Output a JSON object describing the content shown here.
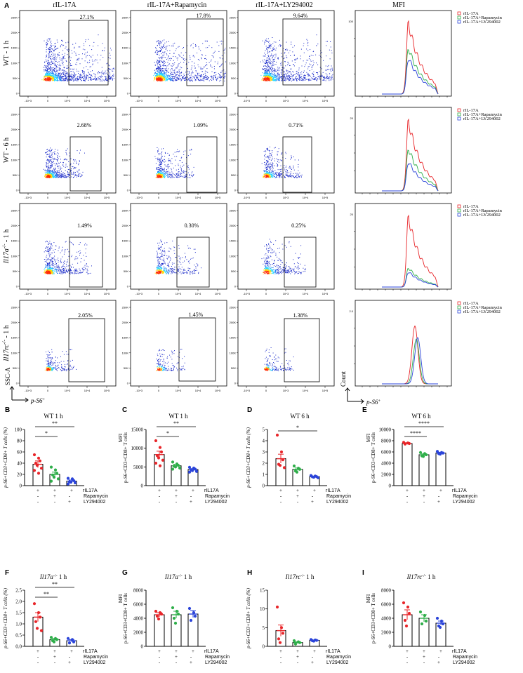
{
  "figure": {
    "section_a_label": "A",
    "column_headers": [
      "rIL-17A",
      "rIL-17A+Rapamycin",
      "rIL-17A+LY294002",
      "MFI"
    ],
    "row_labels": [
      "WT - 1 h",
      "WT - 6 h",
      "Il17a-/- - 1 h",
      "Il17rc-/- - 1 h"
    ],
    "legend_entries": [
      "rIL-17A",
      "rIL-17A+Rapamycin",
      "rIL-17A+LY294002"
    ],
    "colors": {
      "rIL17A": "#e8262a",
      "rapamycin": "#2fae4a",
      "ly294002": "#2b44d9",
      "flow_core": "#ff2a00",
      "flow_mid": "#19d8ff",
      "flow_outer": "#1626c8"
    },
    "flow_axis": {
      "y_label": "SSC-A",
      "x_label": "p-S6+",
      "y_ticks": [
        "250K",
        "200K",
        "150K",
        "100K",
        "50K",
        "0"
      ],
      "x_ticks": [
        "-10^3",
        "0",
        "10^3",
        "10^4",
        "10^5"
      ]
    },
    "hist_axis": {
      "y_label": "Count",
      "x_label": "p-S6+"
    },
    "gates": [
      [
        "27.1%",
        "17.8%",
        "9.64%"
      ],
      [
        "2.68%",
        "1.09%",
        "0.71%"
      ],
      [
        "1.49%",
        "0.30%",
        "0.25%"
      ],
      [
        "2.05%",
        "1.45%",
        "1.38%"
      ]
    ],
    "hist_ymax": [
      "100",
      "20",
      "20",
      "2.0"
    ],
    "treatment_rows": [
      "rIL17A",
      "Rapamycin",
      "LY294002"
    ],
    "treatment_signs": [
      [
        "+",
        "+",
        "+"
      ],
      [
        "-",
        "+",
        "-"
      ],
      [
        "-",
        "-",
        "+"
      ]
    ]
  },
  "chart_data": [
    {
      "panel": "B",
      "type": "bar",
      "title": "WT 1 h",
      "ylabel": "p-S6+CD3+CD8+ T cells (%)",
      "ylim": [
        0,
        100
      ],
      "yticks": [
        "0",
        "20",
        "40",
        "60",
        "80",
        "100"
      ],
      "categories": [
        "rIL17A",
        "rIL17A+Rapamycin",
        "rIL17A+LY294002"
      ],
      "values": [
        38,
        20,
        8
      ],
      "errors": [
        6,
        4,
        2
      ],
      "points": [
        [
          55,
          49,
          44,
          40,
          36,
          31,
          27,
          22
        ],
        [
          33,
          28,
          22,
          19,
          15,
          12,
          8
        ],
        [
          13,
          12,
          9,
          7,
          6,
          5,
          3
        ]
      ],
      "sig": [
        {
          "text": "**",
          "from": 0,
          "to": 2
        },
        {
          "text": "*",
          "from": 0,
          "to": 1
        }
      ]
    },
    {
      "panel": "C",
      "type": "bar",
      "title": "WT 1 h",
      "ylabel": "MFI",
      "ylabel2": "p-S6+CD3+CD8+ T cells",
      "ylim": [
        0,
        15000
      ],
      "yticks": [
        "0",
        "5000",
        "10000",
        "15000"
      ],
      "categories": [
        "rIL17A",
        "rIL17A+Rapamycin",
        "rIL17A+LY294002"
      ],
      "values": [
        8300,
        5300,
        4300
      ],
      "errors": [
        900,
        400,
        250
      ],
      "points": [
        [
          12000,
          10200,
          9000,
          8000,
          7400,
          6800,
          6000,
          5300
        ],
        [
          6300,
          5800,
          5400,
          5200,
          5000,
          4700,
          4400
        ],
        [
          4900,
          4700,
          4400,
          4200,
          4000,
          3800,
          3600
        ]
      ],
      "sig": [
        {
          "text": "**",
          "from": 0,
          "to": 2
        },
        {
          "text": "*",
          "from": 0,
          "to": 1
        }
      ]
    },
    {
      "panel": "D",
      "type": "bar",
      "title": "WT 6 h",
      "ylabel": "p-S6+CD3+CD8+ T cells (%)",
      "ylim": [
        0,
        5
      ],
      "yticks": [
        "0",
        "1",
        "2",
        "3",
        "4",
        "5"
      ],
      "categories": [
        "rIL17A",
        "rIL17A+Rapamycin",
        "rIL17A+LY294002"
      ],
      "values": [
        2.4,
        1.45,
        0.8
      ],
      "errors": [
        0.4,
        0.12,
        0.05
      ],
      "points": [
        [
          4.5,
          3.0,
          2.3,
          1.9,
          1.8,
          1.6
        ],
        [
          1.75,
          1.55,
          1.45,
          1.3,
          1.2
        ],
        [
          0.9,
          0.85,
          0.8,
          0.78,
          0.75,
          0.7
        ]
      ],
      "sig": [
        {
          "text": "*",
          "from": 0,
          "to": 2
        }
      ]
    },
    {
      "panel": "E",
      "type": "bar",
      "title": "WT 6 h",
      "ylabel": "MFI",
      "ylabel2": "p-S6+CD3+CD8+ T cells",
      "ylim": [
        0,
        10000
      ],
      "yticks": [
        "0",
        "2000",
        "4000",
        "6000",
        "8000",
        "10000"
      ],
      "categories": [
        "rIL17A",
        "rIL17A+Rapamycin",
        "rIL17A+LY294002"
      ],
      "values": [
        7500,
        5500,
        5800
      ],
      "errors": [
        150,
        150,
        150
      ],
      "points": [
        [
          7700,
          7600,
          7500,
          7400
        ],
        [
          5900,
          5700,
          5500,
          5300,
          5200
        ],
        [
          6100,
          5900,
          5800,
          5700,
          5600
        ]
      ],
      "sig": [
        {
          "text": "****",
          "from": 0,
          "to": 2
        },
        {
          "text": "****",
          "from": 0,
          "to": 1
        }
      ]
    },
    {
      "panel": "F",
      "type": "bar",
      "title": "Il17a-/- 1 h",
      "ylabel": "p-S6+CD3+CD8+ T cells (%)",
      "ylim": [
        0,
        2.5
      ],
      "yticks": [
        "0.0",
        "0.5",
        "1.0",
        "1.5",
        "2.0",
        "2.5"
      ],
      "categories": [
        "rIL17A",
        "rIL17A+Rapamycin",
        "rIL17A+LY294002"
      ],
      "values": [
        1.3,
        0.3,
        0.25
      ],
      "errors": [
        0.2,
        0.05,
        0.05
      ],
      "points": [
        [
          1.9,
          1.5,
          1.3,
          1.1,
          0.8,
          0.7
        ],
        [
          0.4,
          0.35,
          0.3,
          0.25,
          0.2
        ],
        [
          0.35,
          0.3,
          0.2,
          0.15
        ]
      ],
      "sig": [
        {
          "text": "**",
          "from": 0,
          "to": 2
        },
        {
          "text": "**",
          "from": 0,
          "to": 1
        }
      ]
    },
    {
      "panel": "G",
      "type": "bar",
      "title": "Il17a-/- 1 h",
      "ylabel": "MFI",
      "ylabel2": "p-S6+CD3+CD8+ T cells",
      "ylim": [
        0,
        8000
      ],
      "yticks": [
        "0",
        "2000",
        "4000",
        "6000",
        "8000"
      ],
      "categories": [
        "rIL17A",
        "rIL17A+Rapamycin",
        "rIL17A+LY294002"
      ],
      "values": [
        4500,
        4500,
        4600
      ],
      "errors": [
        300,
        500,
        500
      ],
      "points": [
        [
          5000,
          4800,
          4600,
          4300,
          3900
        ],
        [
          5500,
          5000,
          4600,
          4000,
          3300
        ],
        [
          5400,
          4800,
          4300,
          3700
        ]
      ],
      "sig": []
    },
    {
      "panel": "H",
      "type": "bar",
      "title": "Il17rc-/- 1 h",
      "ylabel": "p-S6+CD3+CD8+ T cells (%)",
      "ylim": [
        0,
        15
      ],
      "yticks": [
        "0",
        "5",
        "10",
        "15"
      ],
      "categories": [
        "rIL17A",
        "rIL17A+Rapamycin",
        "rIL17A+LY294002"
      ],
      "values": [
        4.2,
        1.0,
        1.6
      ],
      "errors": [
        1.5,
        0.25,
        0.1
      ],
      "points": [
        [
          10.5,
          5.0,
          3.5,
          2.0,
          1.0
        ],
        [
          1.5,
          1.2,
          1.0,
          0.6
        ],
        [
          1.8,
          1.7,
          1.6,
          1.5,
          1.4
        ]
      ],
      "sig": []
    },
    {
      "panel": "I",
      "type": "bar",
      "title": "Il17rc-/- 1 h",
      "ylabel": "MFI",
      "ylabel2": "p-S6+CD3+CD8+ T cells",
      "ylim": [
        0,
        8000
      ],
      "yticks": [
        "0",
        "2000",
        "4000",
        "6000",
        "8000"
      ],
      "categories": [
        "rIL17A",
        "rIL17A+Rapamycin",
        "rIL17A+LY294002"
      ],
      "values": [
        4500,
        4000,
        3300
      ],
      "errors": [
        700,
        500,
        300
      ],
      "points": [
        [
          6200,
          5600,
          4700,
          3700,
          2900
        ],
        [
          4900,
          4400,
          3600,
          3200
        ],
        [
          4000,
          3600,
          3200,
          2900,
          2700
        ]
      ],
      "sig": []
    }
  ]
}
